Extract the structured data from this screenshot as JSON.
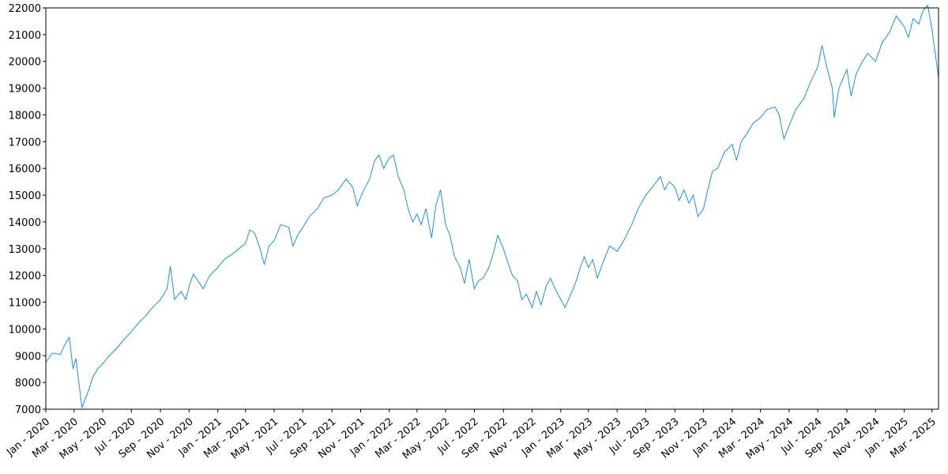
{
  "chart_data": {
    "type": "line",
    "title": "",
    "xlabel": "",
    "ylabel": "",
    "color": "#1f8fd6",
    "grid": false,
    "legend": "none",
    "xlim": [
      "2020-01-01",
      "2025-03-15"
    ],
    "ylim": [
      7000,
      22000
    ],
    "y_ticks": [
      7000,
      8000,
      9000,
      10000,
      11000,
      12000,
      13000,
      14000,
      15000,
      16000,
      17000,
      18000,
      19000,
      20000,
      21000,
      22000
    ],
    "x_ticks": [
      {
        "date": "2020-01-01",
        "label": "Jan - 2020"
      },
      {
        "date": "2020-03-01",
        "label": "Mar - 2020"
      },
      {
        "date": "2020-05-01",
        "label": "May - 2020"
      },
      {
        "date": "2020-07-01",
        "label": "Jul - 2020"
      },
      {
        "date": "2020-09-01",
        "label": "Sep - 2020"
      },
      {
        "date": "2020-11-01",
        "label": "Nov - 2020"
      },
      {
        "date": "2021-01-01",
        "label": "Jan - 2021"
      },
      {
        "date": "2021-03-01",
        "label": "Mar - 2021"
      },
      {
        "date": "2021-05-01",
        "label": "May - 2021"
      },
      {
        "date": "2021-07-01",
        "label": "Jul - 2021"
      },
      {
        "date": "2021-09-01",
        "label": "Sep - 2021"
      },
      {
        "date": "2021-11-01",
        "label": "Nov - 2021"
      },
      {
        "date": "2022-01-01",
        "label": "Jan - 2022"
      },
      {
        "date": "2022-03-01",
        "label": "Mar - 2022"
      },
      {
        "date": "2022-05-01",
        "label": "May - 2022"
      },
      {
        "date": "2022-07-01",
        "label": "Jul - 2022"
      },
      {
        "date": "2022-09-01",
        "label": "Sep - 2022"
      },
      {
        "date": "2022-11-01",
        "label": "Nov - 2022"
      },
      {
        "date": "2023-01-01",
        "label": "Jan - 2023"
      },
      {
        "date": "2023-03-01",
        "label": "Mar - 2023"
      },
      {
        "date": "2023-05-01",
        "label": "May - 2023"
      },
      {
        "date": "2023-07-01",
        "label": "Jul - 2023"
      },
      {
        "date": "2023-09-01",
        "label": "Sep - 2023"
      },
      {
        "date": "2023-11-01",
        "label": "Nov - 2023"
      },
      {
        "date": "2024-01-01",
        "label": "Jan - 2024"
      },
      {
        "date": "2024-03-01",
        "label": "Mar - 2024"
      },
      {
        "date": "2024-05-01",
        "label": "May - 2024"
      },
      {
        "date": "2024-07-01",
        "label": "Jul - 2024"
      },
      {
        "date": "2024-09-01",
        "label": "Sep - 2024"
      },
      {
        "date": "2024-11-01",
        "label": "Nov - 2024"
      },
      {
        "date": "2025-01-01",
        "label": "Jan - 2025"
      },
      {
        "date": "2025-03-01",
        "label": "Mar - 2025"
      }
    ],
    "series": [
      {
        "points": [
          [
            "2020-01-01",
            8750
          ],
          [
            "2020-01-15",
            9100
          ],
          [
            "2020-02-01",
            9050
          ],
          [
            "2020-02-10",
            9400
          ],
          [
            "2020-02-20",
            9680
          ],
          [
            "2020-02-28",
            8500
          ],
          [
            "2020-03-05",
            8900
          ],
          [
            "2020-03-12",
            7900
          ],
          [
            "2020-03-18",
            7050
          ],
          [
            "2020-03-23",
            7300
          ],
          [
            "2020-04-01",
            7700
          ],
          [
            "2020-04-10",
            8200
          ],
          [
            "2020-04-20",
            8500
          ],
          [
            "2020-05-01",
            8700
          ],
          [
            "2020-05-15",
            9000
          ],
          [
            "2020-06-01",
            9300
          ],
          [
            "2020-06-15",
            9600
          ],
          [
            "2020-07-01",
            9900
          ],
          [
            "2020-07-15",
            10200
          ],
          [
            "2020-08-01",
            10500
          ],
          [
            "2020-08-15",
            10800
          ],
          [
            "2020-09-01",
            11100
          ],
          [
            "2020-09-15",
            11500
          ],
          [
            "2020-09-22",
            12350
          ],
          [
            "2020-10-01",
            11100
          ],
          [
            "2020-10-15",
            11400
          ],
          [
            "2020-10-25",
            11100
          ],
          [
            "2020-11-01",
            11600
          ],
          [
            "2020-11-10",
            12050
          ],
          [
            "2020-11-20",
            11800
          ],
          [
            "2020-12-01",
            11500
          ],
          [
            "2020-12-15",
            12000
          ],
          [
            "2021-01-01",
            12300
          ],
          [
            "2021-01-15",
            12600
          ],
          [
            "2021-02-01",
            12800
          ],
          [
            "2021-02-15",
            13000
          ],
          [
            "2021-03-01",
            13200
          ],
          [
            "2021-03-10",
            13700
          ],
          [
            "2021-03-20",
            13600
          ],
          [
            "2021-04-01",
            13000
          ],
          [
            "2021-04-10",
            12400
          ],
          [
            "2021-04-20",
            13100
          ],
          [
            "2021-05-01",
            13300
          ],
          [
            "2021-05-15",
            13900
          ],
          [
            "2021-06-01",
            13800
          ],
          [
            "2021-06-10",
            13100
          ],
          [
            "2021-06-20",
            13500
          ],
          [
            "2021-07-01",
            13800
          ],
          [
            "2021-07-15",
            14200
          ],
          [
            "2021-08-01",
            14500
          ],
          [
            "2021-08-15",
            14900
          ],
          [
            "2021-09-01",
            15000
          ],
          [
            "2021-09-15",
            15200
          ],
          [
            "2021-10-01",
            15600
          ],
          [
            "2021-10-15",
            15300
          ],
          [
            "2021-10-25",
            14600
          ],
          [
            "2021-11-05",
            15100
          ],
          [
            "2021-11-20",
            15600
          ],
          [
            "2021-12-01",
            16300
          ],
          [
            "2021-12-10",
            16500
          ],
          [
            "2021-12-20",
            16000
          ],
          [
            "2022-01-01",
            16400
          ],
          [
            "2022-01-10",
            16500
          ],
          [
            "2022-01-20",
            15700
          ],
          [
            "2022-02-01",
            15200
          ],
          [
            "2022-02-10",
            14500
          ],
          [
            "2022-02-20",
            14000
          ],
          [
            "2022-03-01",
            14300
          ],
          [
            "2022-03-10",
            13900
          ],
          [
            "2022-03-20",
            14500
          ],
          [
            "2022-04-01",
            13400
          ],
          [
            "2022-04-10",
            14600
          ],
          [
            "2022-04-20",
            15200
          ],
          [
            "2022-05-01",
            13900
          ],
          [
            "2022-05-10",
            13500
          ],
          [
            "2022-05-20",
            12700
          ],
          [
            "2022-06-01",
            12300
          ],
          [
            "2022-06-10",
            11700
          ],
          [
            "2022-06-20",
            12600
          ],
          [
            "2022-07-01",
            11500
          ],
          [
            "2022-07-10",
            11800
          ],
          [
            "2022-07-20",
            11900
          ],
          [
            "2022-08-01",
            12300
          ],
          [
            "2022-08-10",
            12800
          ],
          [
            "2022-08-20",
            13500
          ],
          [
            "2022-09-01",
            13000
          ],
          [
            "2022-09-10",
            12500
          ],
          [
            "2022-09-20",
            12000
          ],
          [
            "2022-10-01",
            11800
          ],
          [
            "2022-10-10",
            11100
          ],
          [
            "2022-10-20",
            11300
          ],
          [
            "2022-11-01",
            10800
          ],
          [
            "2022-11-10",
            11400
          ],
          [
            "2022-11-20",
            10900
          ],
          [
            "2022-12-01",
            11600
          ],
          [
            "2022-12-10",
            11900
          ],
          [
            "2022-12-20",
            11500
          ],
          [
            "2023-01-01",
            11100
          ],
          [
            "2023-01-10",
            10800
          ],
          [
            "2023-01-20",
            11200
          ],
          [
            "2023-02-01",
            11700
          ],
          [
            "2023-02-10",
            12200
          ],
          [
            "2023-02-20",
            12700
          ],
          [
            "2023-03-01",
            12300
          ],
          [
            "2023-03-10",
            12600
          ],
          [
            "2023-03-20",
            11900
          ],
          [
            "2023-04-01",
            12500
          ],
          [
            "2023-04-15",
            13100
          ],
          [
            "2023-05-01",
            12900
          ],
          [
            "2023-05-15",
            13300
          ],
          [
            "2023-06-01",
            13900
          ],
          [
            "2023-06-15",
            14500
          ],
          [
            "2023-07-01",
            15000
          ],
          [
            "2023-07-15",
            15300
          ],
          [
            "2023-08-01",
            15700
          ],
          [
            "2023-08-10",
            15200
          ],
          [
            "2023-08-20",
            15500
          ],
          [
            "2023-09-01",
            15300
          ],
          [
            "2023-09-10",
            14800
          ],
          [
            "2023-09-20",
            15200
          ],
          [
            "2023-10-01",
            14700
          ],
          [
            "2023-10-10",
            15000
          ],
          [
            "2023-10-20",
            14200
          ],
          [
            "2023-11-01",
            14500
          ],
          [
            "2023-11-10",
            15200
          ],
          [
            "2023-11-20",
            15900
          ],
          [
            "2023-12-01",
            16000
          ],
          [
            "2023-12-15",
            16600
          ],
          [
            "2024-01-01",
            16900
          ],
          [
            "2024-01-10",
            16300
          ],
          [
            "2024-01-20",
            17000
          ],
          [
            "2024-02-01",
            17300
          ],
          [
            "2024-02-15",
            17700
          ],
          [
            "2024-03-01",
            17900
          ],
          [
            "2024-03-15",
            18200
          ],
          [
            "2024-04-01",
            18300
          ],
          [
            "2024-04-10",
            18000
          ],
          [
            "2024-04-20",
            17100
          ],
          [
            "2024-05-01",
            17600
          ],
          [
            "2024-05-15",
            18200
          ],
          [
            "2024-06-01",
            18600
          ],
          [
            "2024-06-15",
            19200
          ],
          [
            "2024-07-01",
            19800
          ],
          [
            "2024-07-10",
            20600
          ],
          [
            "2024-07-20",
            19800
          ],
          [
            "2024-08-01",
            19000
          ],
          [
            "2024-08-05",
            17900
          ],
          [
            "2024-08-15",
            19000
          ],
          [
            "2024-09-01",
            19700
          ],
          [
            "2024-09-10",
            18700
          ],
          [
            "2024-09-20",
            19500
          ],
          [
            "2024-10-01",
            19900
          ],
          [
            "2024-10-15",
            20300
          ],
          [
            "2024-11-01",
            20000
          ],
          [
            "2024-11-15",
            20700
          ],
          [
            "2024-12-01",
            21100
          ],
          [
            "2024-12-15",
            21700
          ],
          [
            "2025-01-01",
            21300
          ],
          [
            "2025-01-10",
            20900
          ],
          [
            "2025-01-20",
            21600
          ],
          [
            "2025-02-01",
            21400
          ],
          [
            "2025-02-10",
            21900
          ],
          [
            "2025-02-20",
            22100
          ],
          [
            "2025-03-01",
            21200
          ],
          [
            "2025-03-08",
            20300
          ],
          [
            "2025-03-15",
            19400
          ]
        ]
      }
    ]
  }
}
